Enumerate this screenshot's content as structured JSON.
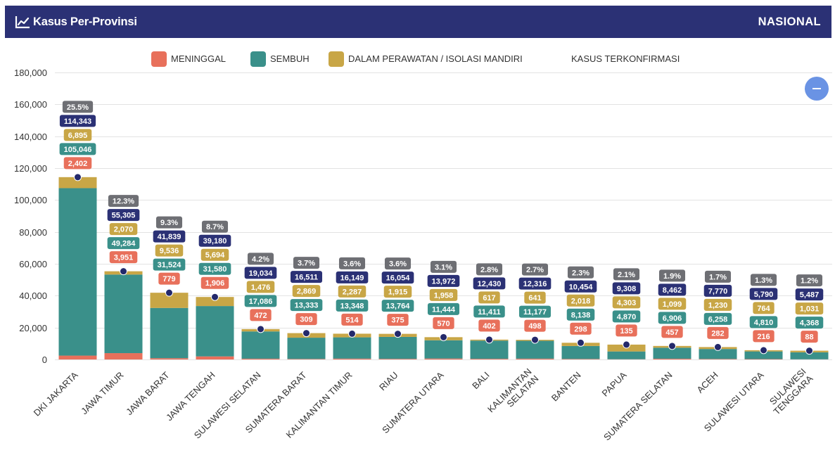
{
  "header": {
    "title": "Kasus Per-Provinsi",
    "title_icon": "line-chart-icon",
    "scope": "NASIONAL"
  },
  "toolbar": {
    "minimize_icon": "minus-icon"
  },
  "colors": {
    "header_bg": "#2b3175",
    "percent_label": "#6e6f74",
    "marker": "#23296b",
    "minimize_button": "#6a93e4",
    "gridline": "#e3e3e3",
    "axis_text": "#333333"
  },
  "chart_data": {
    "type": "bar",
    "stacked": true,
    "categories": [
      "DKI JAKARTA",
      "JAWA TIMUR",
      "JAWA BARAT",
      "JAWA TENGAH",
      "SULAWESI SELATAN",
      "SUMATERA BARAT",
      "KALIMANTAN TIMUR",
      "RIAU",
      "SUMATERA UTARA",
      "BALI",
      "KALIMANTAN SELATAN",
      "BANTEN",
      "PAPUA",
      "SUMATERA SELATAN",
      "ACEH",
      "SULAWESI UTARA",
      "SULAWESI TENGGARA"
    ],
    "series": [
      {
        "name": "MENINGGAL",
        "type": "bar",
        "color": "#e8705b",
        "values": [
          2402,
          3951,
          779,
          1906,
          472,
          309,
          514,
          375,
          570,
          402,
          498,
          298,
          135,
          457,
          282,
          216,
          88
        ]
      },
      {
        "name": "SEMBUH",
        "type": "bar",
        "color": "#3a908a",
        "values": [
          105046,
          49284,
          31524,
          31580,
          17086,
          13333,
          13348,
          13764,
          11444,
          11411,
          11177,
          8138,
          4870,
          6906,
          6258,
          4810,
          4368
        ]
      },
      {
        "name": "DALAM PERAWATAN / ISOLASI MANDIRI",
        "type": "bar",
        "color": "#c8a646",
        "values": [
          6895,
          2070,
          9536,
          5694,
          1476,
          2869,
          2287,
          1915,
          1958,
          617,
          641,
          2018,
          4303,
          1099,
          1230,
          764,
          1031
        ]
      },
      {
        "name": "KASUS TERKONFIRMASI",
        "type": "scatter",
        "color": "#2b3175",
        "values": [
          114343,
          55305,
          41839,
          39180,
          19034,
          16511,
          16149,
          16054,
          13972,
          12430,
          12316,
          10454,
          9308,
          8462,
          7770,
          5790,
          5487
        ]
      }
    ],
    "share_percent": [
      25.5,
      12.3,
      9.3,
      8.7,
      4.2,
      3.7,
      3.6,
      3.6,
      3.1,
      2.8,
      2.7,
      2.3,
      2.1,
      1.9,
      1.7,
      1.3,
      1.2
    ],
    "ylim": [
      0,
      180000
    ],
    "yticks": [
      0,
      20000,
      40000,
      60000,
      80000,
      100000,
      120000,
      140000,
      160000,
      180000
    ],
    "grid": true,
    "legend_position": "top-center"
  }
}
